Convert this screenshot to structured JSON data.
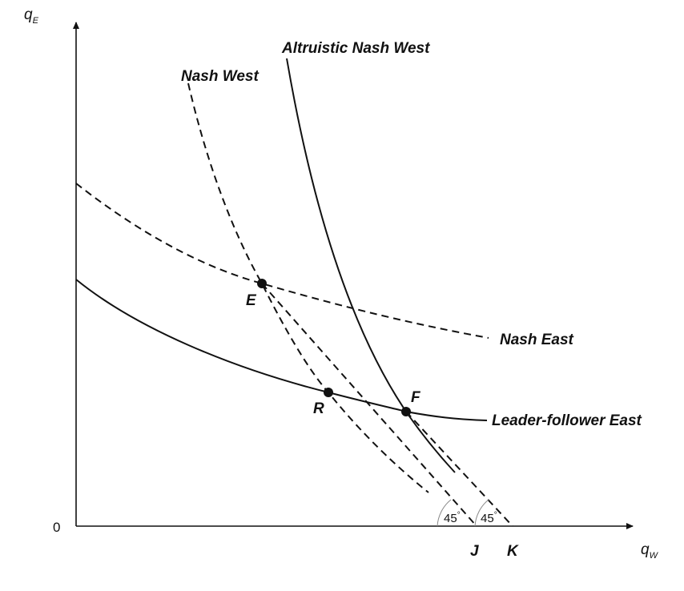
{
  "axes": {
    "y_symbol": "q",
    "y_subscript": "E",
    "x_symbol": "q",
    "x_subscript": "W",
    "origin": "0"
  },
  "curves": {
    "altruistic_nash_west": "Altruistic Nash West",
    "nash_west": "Nash West",
    "nash_east": "Nash East",
    "leader_follower_east": "Leader-follower East"
  },
  "points": {
    "E": "E",
    "R": "R",
    "F": "F",
    "J": "J",
    "K": "K"
  },
  "angles": {
    "at_J": "45",
    "at_K": "45",
    "unit": "°"
  }
}
